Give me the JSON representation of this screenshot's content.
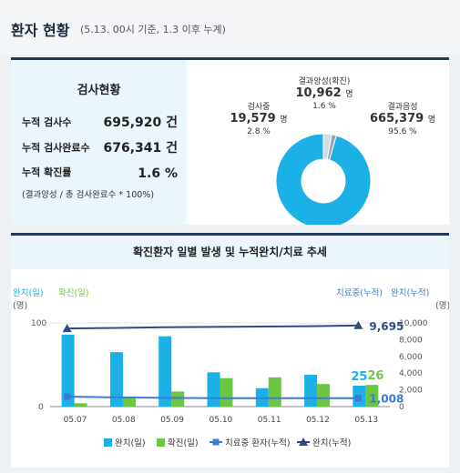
{
  "header": {
    "title": "환자 현황",
    "subtitle": "(5.13. 00시 기준, 1.3 이후 누계)"
  },
  "test_status": {
    "title": "검사현황",
    "rows": [
      {
        "label": "누적 검사수",
        "value": "695,920 건"
      },
      {
        "label": "누적 검사완료수",
        "value": "676,341 건"
      },
      {
        "label": "누적 확진률",
        "value": "1.6 %"
      }
    ],
    "note": "(결과양성 / 총 검사완료수 * 100%)"
  },
  "donut": {
    "in_progress": {
      "label": "검사중",
      "value": "19,579",
      "unit": "명",
      "pct": "2.8 %"
    },
    "positive": {
      "label": "결과양성(확진)",
      "value": "10,962",
      "unit": "명",
      "pct": "1.6 %"
    },
    "negative": {
      "label": "결과음성",
      "value": "665,379",
      "unit": "명",
      "pct": "95.6 %"
    },
    "shares": {
      "in_progress": 2.8,
      "positive": 1.6,
      "negative": 95.6
    },
    "colors": {
      "in_progress": "#d5dbe1",
      "positive": "#9aa5b0",
      "negative": "#1bb0e6"
    }
  },
  "trend": {
    "title": "확진환자 일별 발생 및 누적완치/치료 추세",
    "left_axis_label_1": "완치(일)",
    "left_axis_label_2": "확진(일)",
    "left_axis_unit": "(명)",
    "right_axis_label_1": "치료중(누적)",
    "right_axis_label_2": "완치(누적)",
    "right_axis_unit": "(명)",
    "left_ticks": [
      "100",
      "0"
    ],
    "right_ticks": [
      "10,000",
      "8,000",
      "6,000",
      "4,000",
      "2,000",
      "0"
    ],
    "annotations": {
      "last_recovered_day": "25",
      "last_confirmed_day": "26",
      "last_treatment": "1,008",
      "last_recovered_cum": "9,695"
    },
    "legend": [
      "완치(일)",
      "확진(일)",
      "치료중 환자(누적)",
      "완치(누적)"
    ],
    "colors": {
      "recovered_day": "#1bb0e6",
      "confirmed_day": "#6cc644",
      "treatment": "#3a7bd5",
      "recovered_cum": "#2d4a86"
    }
  },
  "chart_data": {
    "type": "bar",
    "categories": [
      "05.07",
      "05.08",
      "05.09",
      "05.10",
      "05.11",
      "05.12",
      "05.13"
    ],
    "series": [
      {
        "name": "완치(일)",
        "type": "bar",
        "axis": "left",
        "values": [
          86,
          65,
          84,
          41,
          22,
          38,
          25
        ]
      },
      {
        "name": "확진(일)",
        "type": "bar",
        "axis": "left",
        "values": [
          4,
          12,
          18,
          34,
          35,
          27,
          26
        ]
      },
      {
        "name": "치료중 환자(누적)",
        "type": "line",
        "axis": "right",
        "values": [
          1200,
          1100,
          1050,
          1000,
          1000,
          1000,
          1008
        ]
      },
      {
        "name": "완치(누적)",
        "type": "line",
        "axis": "right",
        "values": [
          9333,
          9400,
          9480,
          9520,
          9560,
          9600,
          9695
        ]
      }
    ],
    "ylim_left": [
      0,
      100
    ],
    "ylim_right": [
      0,
      10000
    ]
  }
}
